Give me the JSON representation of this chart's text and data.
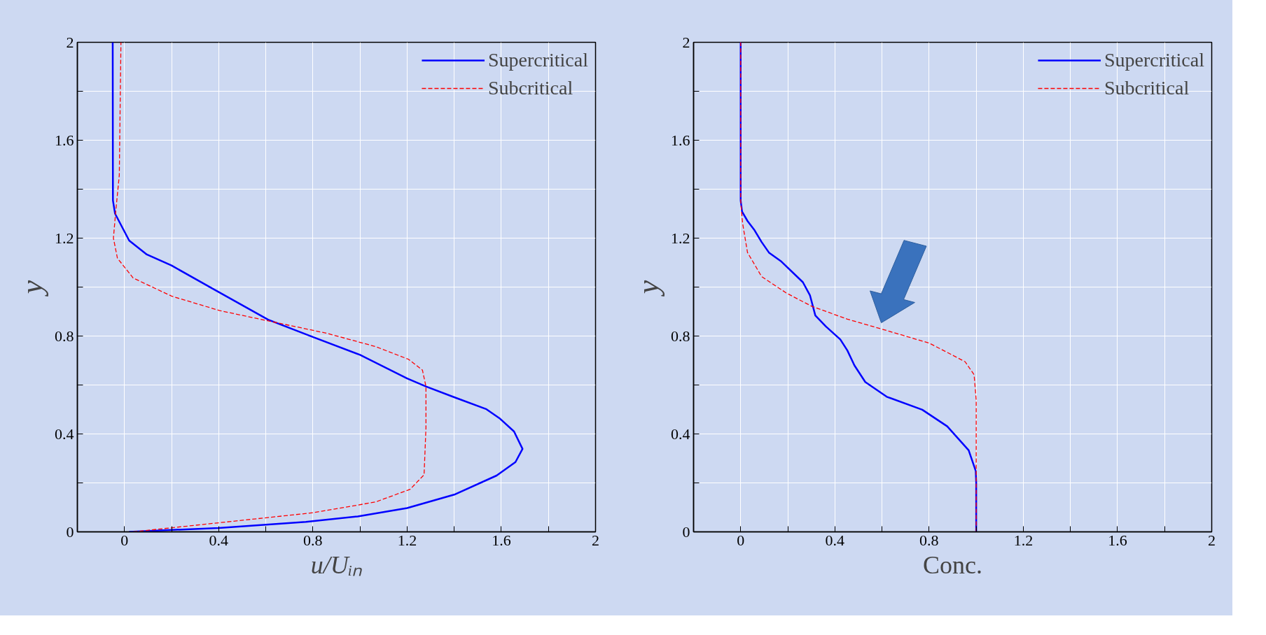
{
  "chart_data": [
    {
      "type": "line",
      "xlabel": "u/Uᵢₙ",
      "ylabel": "y",
      "xlim": [
        -0.2,
        2
      ],
      "ylim": [
        0,
        2
      ],
      "xticks": [
        0,
        {
          "value": 0.2,
          "label": null
        },
        0.4,
        {
          "value": 0.6,
          "label": null
        },
        0.8,
        {
          "value": 1.0,
          "label": null
        },
        1.2,
        {
          "value": 1.4,
          "label": null
        },
        1.6,
        {
          "value": 1.8,
          "label": null
        },
        2
      ],
      "yticks": [
        0,
        {
          "value": 0.2,
          "label": null
        },
        0.4,
        {
          "value": 0.6,
          "label": null
        },
        0.8,
        {
          "value": 1.0,
          "label": null
        },
        1.2,
        {
          "value": 1.4,
          "label": null
        },
        1.6,
        {
          "value": 1.8,
          "label": null
        },
        2
      ],
      "grid": true,
      "legend": "top right",
      "series": [
        {
          "name": "Supercritical",
          "color": "#0000ff",
          "line_style": "solid",
          "x": [
            0.02,
            0.4,
            0.77,
            0.99,
            1.2,
            1.4,
            1.58,
            1.66,
            1.69,
            1.654,
            1.595,
            1.537,
            1.4,
            1.28,
            1.2,
            1.0,
            0.8,
            0.61,
            0.375,
            0.2,
            0.095,
            0.02,
            -0.04,
            -0.049,
            -0.05
          ],
          "values": [
            0,
            0.016,
            0.041,
            0.063,
            0.097,
            0.152,
            0.23,
            0.285,
            0.339,
            0.41,
            0.462,
            0.501,
            0.55,
            0.594,
            0.627,
            0.723,
            0.796,
            0.867,
            0.993,
            1.088,
            1.133,
            1.19,
            1.3,
            1.354,
            2
          ]
        },
        {
          "name": "Subcritical",
          "color": "#ff0000",
          "line_style": "dashed",
          "x": [
            0.037,
            0.4,
            0.8,
            1.066,
            1.213,
            1.272,
            1.28,
            1.28,
            1.265,
            1.206,
            1.066,
            0.86,
            0.654,
            0.404,
            0.2,
            0.037,
            -0.03,
            -0.047,
            -0.037,
            -0.022,
            -0.015
          ],
          "values": [
            0,
            0.037,
            0.078,
            0.122,
            0.174,
            0.233,
            0.425,
            0.594,
            0.661,
            0.705,
            0.757,
            0.811,
            0.853,
            0.904,
            0.963,
            1.037,
            1.118,
            1.2,
            1.31,
            1.457,
            2
          ]
        }
      ]
    },
    {
      "type": "line",
      "xlabel": "Conc.",
      "ylabel": "y",
      "xlim": [
        -0.2,
        2
      ],
      "ylim": [
        0,
        2
      ],
      "xticks": [
        0,
        {
          "value": 0.2,
          "label": null
        },
        0.4,
        {
          "value": 0.6,
          "label": null
        },
        0.8,
        {
          "value": 1.0,
          "label": null
        },
        1.2,
        {
          "value": 1.4,
          "label": null
        },
        1.6,
        {
          "value": 1.8,
          "label": null
        },
        2
      ],
      "yticks": [
        0,
        {
          "value": 0.2,
          "label": null
        },
        0.4,
        {
          "value": 0.6,
          "label": null
        },
        0.8,
        {
          "value": 1.0,
          "label": null
        },
        1.2,
        {
          "value": 1.4,
          "label": null
        },
        1.6,
        {
          "value": 1.8,
          "label": null
        },
        2
      ],
      "grid": true,
      "legend": "top right",
      "series": [
        {
          "name": "Supercritical",
          "color": "#0000ff",
          "line_style": "solid",
          "x": [
            1.0,
            1.0,
            0.998,
            0.968,
            0.877,
            0.771,
            0.62,
            0.529,
            0.483,
            0.453,
            0.423,
            0.362,
            0.317,
            0.294,
            0.264,
            0.173,
            0.12,
            0.089,
            0.059,
            0.029,
            0.006,
            0,
            0
          ],
          "values": [
            0,
            0.2,
            0.249,
            0.333,
            0.431,
            0.499,
            0.552,
            0.612,
            0.68,
            0.741,
            0.786,
            0.839,
            0.884,
            0.967,
            1.02,
            1.104,
            1.141,
            1.184,
            1.232,
            1.27,
            1.308,
            1.353,
            2
          ]
        },
        {
          "name": "Subcritical",
          "color": "#ff0000",
          "line_style": "dashed",
          "x": [
            1.0,
            1.0,
            0.991,
            0.953,
            0.801,
            0.604,
            0.453,
            0.301,
            0.195,
            0.089,
            0.029,
            0.008,
            0,
            0
          ],
          "values": [
            0,
            0.537,
            0.642,
            0.695,
            0.771,
            0.827,
            0.869,
            0.922,
            0.975,
            1.043,
            1.141,
            1.262,
            1.353,
            2
          ]
        }
      ]
    }
  ]
}
